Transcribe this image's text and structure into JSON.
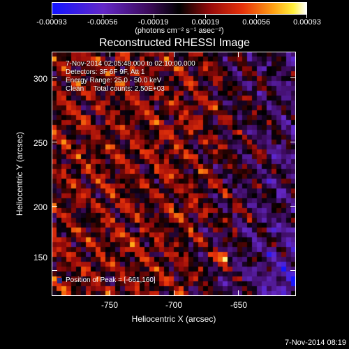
{
  "colorbar": {
    "tick_labels": [
      "-0.00093",
      "-0.00056",
      "-0.00019",
      "0.00019",
      "0.00056",
      "0.00093"
    ],
    "units": "(photons cm⁻² s⁻¹ asec⁻²)",
    "min": -0.00093,
    "max": 0.00093
  },
  "plot": {
    "title": "Reconstructed RHESSI Image",
    "info": {
      "time_range": "7-Nov-2014 02:05:48.000 to 02:10:00.000",
      "detectors": "Detectors: 3F 6F 9F, Att 1",
      "energy_range": "Energy Range: 25.0 - 50.0 keV",
      "method_counts": "Clean     Total counts: 2.50E+03"
    },
    "peak_label": "Position of Peak = [-661,160]"
  },
  "chart_data": {
    "type": "heatmap",
    "title": "Reconstructed RHESSI Image",
    "xlabel": "Heliocentric X (arcsec)",
    "ylabel": "Heliocentric Y (arcsec)",
    "xlim": [
      -795,
      -605
    ],
    "ylim": [
      130,
      320
    ],
    "x_ticks": [
      -750,
      -700,
      -650
    ],
    "y_ticks": [
      150,
      200,
      250,
      300
    ],
    "colorbar_range": [
      -0.00093,
      0.00093
    ],
    "peak": {
      "x": -661,
      "y": 160
    },
    "grid": false
  },
  "axes": {
    "x_tick_labels": [
      "-750",
      "-700",
      "-650"
    ],
    "y_tick_labels": [
      "150",
      "200",
      "250",
      "300"
    ]
  },
  "footer": {
    "date": "7-Nov-2014 08:19"
  }
}
